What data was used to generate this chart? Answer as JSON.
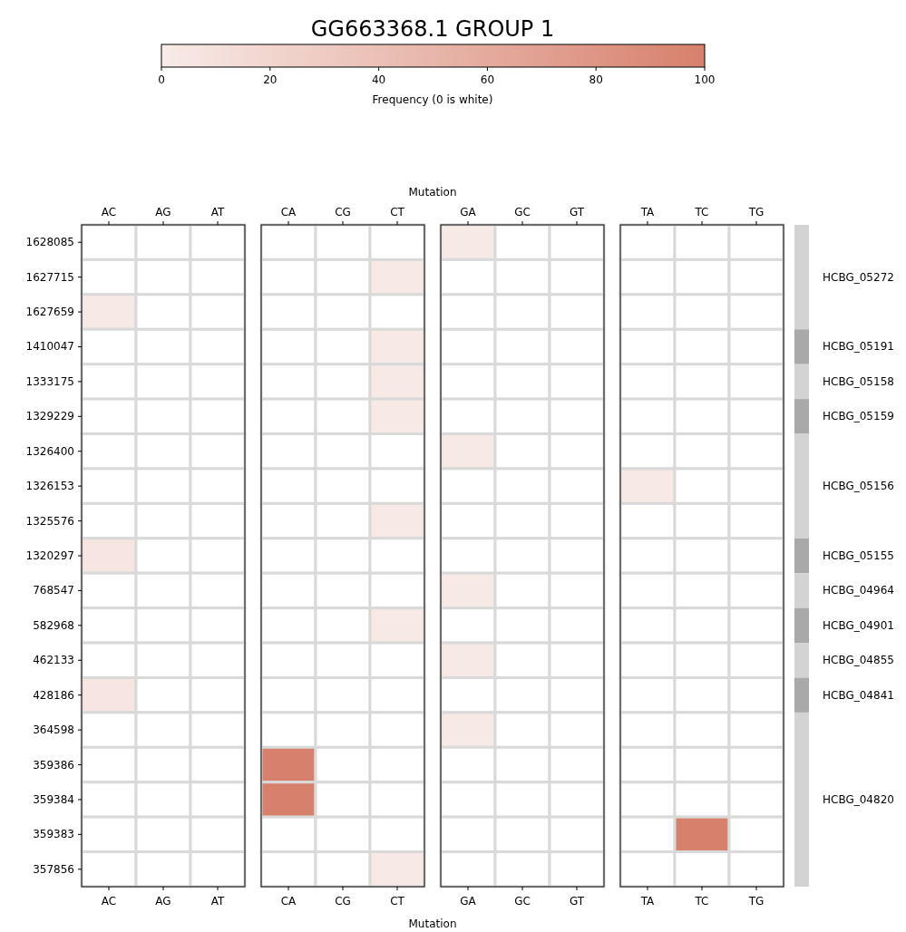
{
  "chart_data": {
    "type": "heatmap",
    "title": "GG663368.1 GROUP 1",
    "clabel": "Frequency (0 is white)",
    "clim": [
      0,
      100
    ],
    "cticks": [
      0,
      20,
      40,
      60,
      80,
      100
    ],
    "xlabel": "Mutation",
    "x2label": "Mutation",
    "categories": [
      "AC",
      "AG",
      "AT",
      "CA",
      "CG",
      "CT",
      "GA",
      "GC",
      "GT",
      "TA",
      "TC",
      "TG"
    ],
    "y_categories": [
      "1628085",
      "1627715",
      "1627659",
      "1410047",
      "1333175",
      "1329229",
      "1326400",
      "1326153",
      "1325576",
      "1320297",
      "768547",
      "582968",
      "462133",
      "428186",
      "364598",
      "359386",
      "359384",
      "359383",
      "357856"
    ],
    "y2_categories": [
      null,
      "HCBG_05272",
      null,
      "HCBG_05191",
      "HCBG_05158",
      "HCBG_05159",
      null,
      "HCBG_05156",
      null,
      "HCBG_05155",
      "HCBG_04964",
      "HCBG_04901",
      "HCBG_04855",
      "HCBG_04841",
      null,
      null,
      "HCBG_04820",
      null,
      null
    ],
    "cells": [
      [
        null,
        null,
        null,
        null,
        null,
        null,
        2,
        null,
        null,
        null,
        null,
        null
      ],
      [
        null,
        null,
        null,
        null,
        null,
        2,
        null,
        null,
        null,
        null,
        null,
        null
      ],
      [
        2,
        null,
        null,
        null,
        null,
        null,
        null,
        null,
        null,
        null,
        null,
        null
      ],
      [
        null,
        null,
        null,
        null,
        null,
        2,
        null,
        null,
        null,
        null,
        null,
        null
      ],
      [
        null,
        null,
        null,
        null,
        null,
        2,
        null,
        null,
        null,
        null,
        null,
        null
      ],
      [
        null,
        null,
        null,
        null,
        null,
        2,
        null,
        null,
        null,
        null,
        null,
        null
      ],
      [
        null,
        null,
        null,
        null,
        null,
        null,
        2,
        null,
        null,
        null,
        null,
        null
      ],
      [
        null,
        null,
        null,
        null,
        null,
        null,
        null,
        null,
        null,
        2,
        null,
        null
      ],
      [
        null,
        null,
        null,
        null,
        null,
        2,
        null,
        null,
        null,
        null,
        null,
        null
      ],
      [
        6,
        null,
        null,
        null,
        null,
        null,
        null,
        null,
        null,
        null,
        null,
        null
      ],
      [
        null,
        null,
        null,
        null,
        null,
        null,
        2,
        null,
        null,
        null,
        null,
        null
      ],
      [
        null,
        null,
        null,
        null,
        null,
        2,
        null,
        null,
        null,
        null,
        null,
        null
      ],
      [
        null,
        null,
        null,
        null,
        null,
        null,
        2,
        null,
        null,
        null,
        null,
        null
      ],
      [
        6,
        null,
        null,
        null,
        null,
        null,
        null,
        null,
        null,
        null,
        null,
        null
      ],
      [
        null,
        null,
        null,
        null,
        null,
        null,
        2,
        null,
        null,
        null,
        null,
        null
      ],
      [
        null,
        null,
        null,
        100,
        null,
        null,
        null,
        null,
        null,
        null,
        null,
        null
      ],
      [
        null,
        null,
        null,
        100,
        null,
        null,
        null,
        null,
        null,
        null,
        null,
        null
      ],
      [
        null,
        null,
        null,
        null,
        null,
        null,
        null,
        null,
        null,
        null,
        100,
        null
      ],
      [
        null,
        null,
        null,
        null,
        null,
        2,
        null,
        null,
        null,
        null,
        null,
        null
      ]
    ]
  }
}
